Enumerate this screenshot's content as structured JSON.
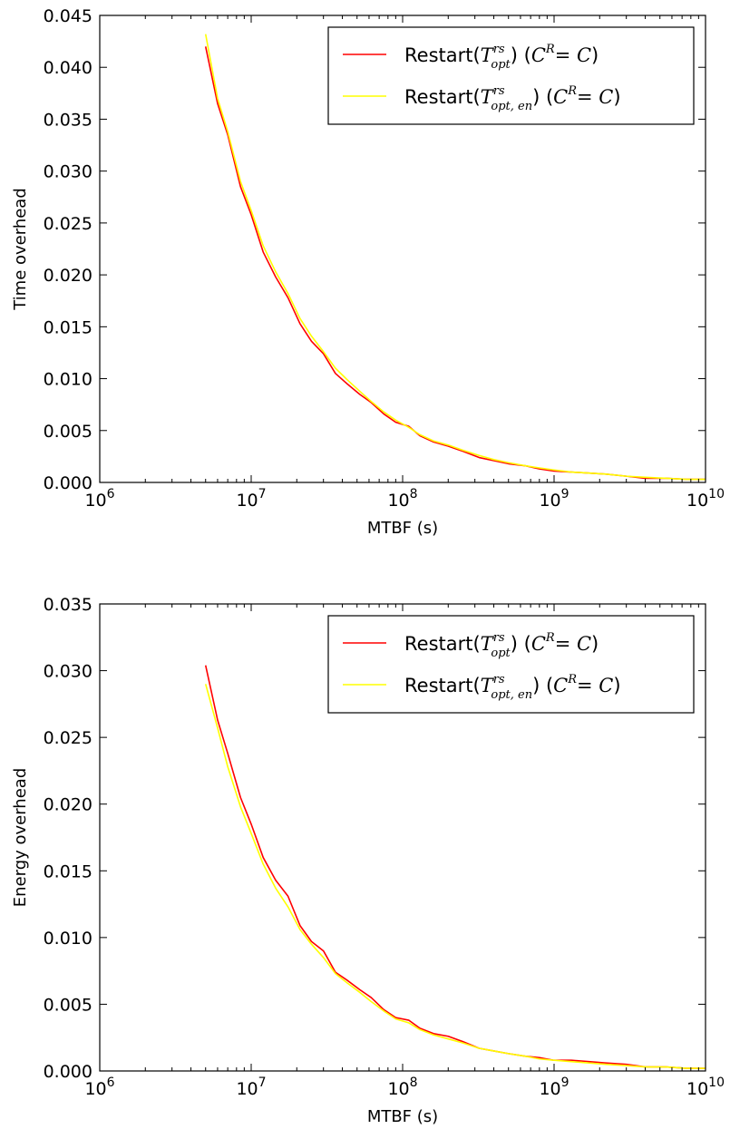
{
  "chart_data": [
    {
      "type": "line",
      "ylabel": "Time overhead",
      "xlabel": "MTBF (s)",
      "xscale": "log",
      "xlim": [
        1000000,
        10000000000
      ],
      "ylim": [
        0,
        0.045
      ],
      "xticks": [
        {
          "base": "10",
          "exp": "6"
        },
        {
          "base": "10",
          "exp": "7"
        },
        {
          "base": "10",
          "exp": "8"
        },
        {
          "base": "10",
          "exp": "9"
        },
        {
          "base": "10",
          "exp": "10"
        }
      ],
      "yticks": [
        "0.000",
        "0.005",
        "0.010",
        "0.015",
        "0.020",
        "0.025",
        "0.030",
        "0.035",
        "0.040",
        "0.045"
      ],
      "grid": false,
      "legend_position": "top-right",
      "series": [
        {
          "name": "Restart(T^rs_opt) (C^R = C)",
          "legend": {
            "prefix": "Restart(",
            "sym": "T",
            "sup": "rs",
            "sub": "opt",
            "suffix": ") (",
            "math": "C^R = C",
            "close": ")"
          },
          "color": "#ff0000",
          "x": [
            5000000,
            6000000,
            7000000,
            8500000,
            10000000,
            12000000,
            14500000,
            17500000,
            21000000,
            25000000,
            30000000,
            36000000,
            43000000,
            52000000,
            62000000,
            75000000,
            90000000,
            110000000,
            130000000,
            160000000,
            200000000,
            250000000,
            320000000,
            400000000,
            500000000,
            650000000,
            800000000,
            1000000000,
            1300000000,
            1700000000,
            2200000000,
            3000000000,
            4000000000,
            5500000000,
            7500000000,
            10000000000
          ],
          "y": [
            0.042,
            0.0365,
            0.0335,
            0.0285,
            0.0258,
            0.0222,
            0.0198,
            0.0178,
            0.0153,
            0.0136,
            0.0124,
            0.0105,
            0.0095,
            0.0085,
            0.0077,
            0.0066,
            0.0058,
            0.0054,
            0.0045,
            0.0039,
            0.0035,
            0.003,
            0.0024,
            0.0021,
            0.0018,
            0.0016,
            0.0013,
            0.0011,
            0.001,
            0.0009,
            0.0008,
            0.0006,
            0.0004,
            0.0004,
            0.0003,
            0.0003
          ]
        },
        {
          "name": "Restart(T^rs_opt,en) (C^R = C)",
          "legend": {
            "prefix": "Restart(",
            "sym": "T",
            "sup": "rs",
            "sub": "opt, en",
            "suffix": ") (",
            "math": "C^R = C",
            "close": ")"
          },
          "color": "#ffff00",
          "x": [
            5000000,
            6000000,
            7000000,
            8500000,
            10000000,
            12000000,
            14500000,
            17500000,
            21000000,
            25000000,
            30000000,
            36000000,
            43000000,
            52000000,
            62000000,
            75000000,
            90000000,
            110000000,
            130000000,
            160000000,
            200000000,
            250000000,
            320000000,
            400000000,
            500000000,
            650000000,
            800000000,
            1000000000,
            1300000000,
            1700000000,
            2200000000,
            3000000000,
            4000000000,
            5500000000,
            7500000000,
            10000000000
          ],
          "y": [
            0.0432,
            0.037,
            0.0338,
            0.029,
            0.0262,
            0.0228,
            0.0203,
            0.0182,
            0.0158,
            0.0141,
            0.0126,
            0.011,
            0.0099,
            0.0088,
            0.0078,
            0.0068,
            0.006,
            0.0053,
            0.0046,
            0.004,
            0.0036,
            0.0031,
            0.0026,
            0.0022,
            0.0019,
            0.0016,
            0.0014,
            0.0012,
            0.001,
            0.0009,
            0.0008,
            0.0006,
            0.0005,
            0.0004,
            0.0003,
            0.0003
          ]
        }
      ]
    },
    {
      "type": "line",
      "ylabel": "Energy overhead",
      "xlabel": "MTBF (s)",
      "xscale": "log",
      "xlim": [
        1000000,
        10000000000
      ],
      "ylim": [
        0,
        0.035
      ],
      "xticks": [
        {
          "base": "10",
          "exp": "6"
        },
        {
          "base": "10",
          "exp": "7"
        },
        {
          "base": "10",
          "exp": "8"
        },
        {
          "base": "10",
          "exp": "9"
        },
        {
          "base": "10",
          "exp": "10"
        }
      ],
      "yticks": [
        "0.000",
        "0.005",
        "0.010",
        "0.015",
        "0.020",
        "0.025",
        "0.030",
        "0.035"
      ],
      "grid": false,
      "legend_position": "top-right",
      "series": [
        {
          "name": "Restart(T^rs_opt) (C^R = C)",
          "legend": {
            "prefix": "Restart(",
            "sym": "T",
            "sup": "rs",
            "sub": "opt",
            "suffix": ") (",
            "math": "C^R = C",
            "close": ")"
          },
          "color": "#ff0000",
          "x": [
            5000000,
            6000000,
            7000000,
            8500000,
            10000000,
            12000000,
            14500000,
            17500000,
            21000000,
            25000000,
            30000000,
            36000000,
            43000000,
            52000000,
            62000000,
            75000000,
            90000000,
            110000000,
            130000000,
            160000000,
            200000000,
            250000000,
            320000000,
            400000000,
            500000000,
            650000000,
            800000000,
            1000000000,
            1300000000,
            1700000000,
            2200000000,
            3000000000,
            4000000000,
            5500000000,
            7500000000,
            10000000000
          ],
          "y": [
            0.0304,
            0.0263,
            0.0238,
            0.0205,
            0.0185,
            0.016,
            0.0143,
            0.0131,
            0.0109,
            0.0097,
            0.009,
            0.0074,
            0.0068,
            0.0061,
            0.0055,
            0.0046,
            0.004,
            0.0038,
            0.0032,
            0.0028,
            0.0026,
            0.0022,
            0.0017,
            0.0015,
            0.0013,
            0.0011,
            0.001,
            0.0008,
            0.0008,
            0.0007,
            0.0006,
            0.0005,
            0.0003,
            0.0003,
            0.0002,
            0.0002
          ]
        },
        {
          "name": "Restart(T^rs_opt,en) (C^R = C)",
          "legend": {
            "prefix": "Restart(",
            "sym": "T",
            "sup": "rs",
            "sub": "opt, en",
            "suffix": ") (",
            "math": "C^R = C",
            "close": ")"
          },
          "color": "#ffff00",
          "x": [
            5000000,
            6000000,
            7000000,
            8500000,
            10000000,
            12000000,
            14500000,
            17500000,
            21000000,
            25000000,
            30000000,
            36000000,
            43000000,
            52000000,
            62000000,
            75000000,
            90000000,
            110000000,
            130000000,
            160000000,
            200000000,
            250000000,
            320000000,
            400000000,
            500000000,
            650000000,
            800000000,
            1000000000,
            1300000000,
            1700000000,
            2200000000,
            3000000000,
            4000000000,
            5500000000,
            7500000000,
            10000000000
          ],
          "y": [
            0.029,
            0.0257,
            0.0228,
            0.0198,
            0.0178,
            0.0155,
            0.0137,
            0.0123,
            0.0106,
            0.0095,
            0.0085,
            0.0073,
            0.0066,
            0.0059,
            0.0052,
            0.0045,
            0.0039,
            0.0036,
            0.0031,
            0.0027,
            0.0024,
            0.0021,
            0.0017,
            0.0015,
            0.0013,
            0.0011,
            0.0009,
            0.0008,
            0.0007,
            0.0006,
            0.0005,
            0.0004,
            0.0003,
            0.0003,
            0.0002,
            0.0002
          ]
        }
      ]
    }
  ]
}
